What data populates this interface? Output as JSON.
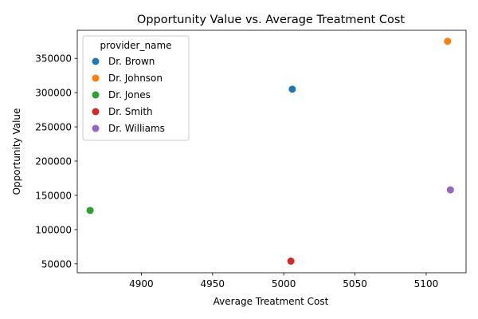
{
  "chart_data": {
    "type": "scatter",
    "title": "Opportunity Value vs. Average Treatment Cost",
    "xlabel": "Average Treatment Cost",
    "ylabel": "Opportunity Value",
    "xlim": [
      4855,
      5128
    ],
    "ylim": [
      37000,
      391000
    ],
    "xticks": [
      4900,
      4950,
      5000,
      5050,
      5100
    ],
    "yticks": [
      50000,
      100000,
      150000,
      200000,
      250000,
      300000,
      350000
    ],
    "grid": false,
    "legend": {
      "title": "provider_name",
      "placement": "top-left"
    },
    "series": [
      {
        "name": "Dr. Brown",
        "color": "#1f77b4",
        "points": [
          {
            "x": 5006,
            "y": 305000
          }
        ]
      },
      {
        "name": "Dr. Johnson",
        "color": "#ff7f0e",
        "points": [
          {
            "x": 5115,
            "y": 375000
          }
        ]
      },
      {
        "name": "Dr. Jones",
        "color": "#2ca02c",
        "points": [
          {
            "x": 4864,
            "y": 128000
          }
        ]
      },
      {
        "name": "Dr. Smith",
        "color": "#d62728",
        "points": [
          {
            "x": 5005,
            "y": 54000
          }
        ]
      },
      {
        "name": "Dr. Williams",
        "color": "#9467bd",
        "points": [
          {
            "x": 5117,
            "y": 158000
          }
        ]
      }
    ]
  }
}
